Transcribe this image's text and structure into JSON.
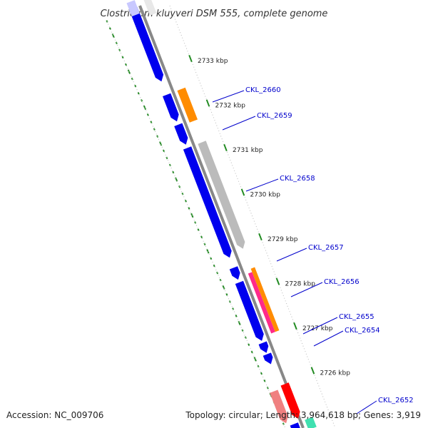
{
  "title": "Clostridium kluyveri DSM 555, complete genome",
  "accession_text": "Accession: NC_009706",
  "topology_text": "Topology: circular; Length: 3,964,618 bp; Genes: 3,919",
  "colors": {
    "forward_cds": "#0000ee",
    "orange_cds": "#ff8c00",
    "gray_feature": "#bbbbbb",
    "pink_feature": "#ff2a8a",
    "red_feature": "#ff0000",
    "light_red_feature": "#f08080",
    "teal_feature": "#40e0b0",
    "backbone": "#888888",
    "gc_ticks": "#228b22",
    "label_line": "#0000cc"
  },
  "kbp_ticks": [
    {
      "text": "2733 kbp",
      "kbp": 2733
    },
    {
      "text": "2732 kbp",
      "kbp": 2732
    },
    {
      "text": "2731 kbp",
      "kbp": 2731
    },
    {
      "text": "2730 kbp",
      "kbp": 2730
    },
    {
      "text": "2729 kbp",
      "kbp": 2729
    },
    {
      "text": "2728 kbp",
      "kbp": 2728
    },
    {
      "text": "2727 kbp",
      "kbp": 2727
    },
    {
      "text": "2726 kbp",
      "kbp": 2726
    }
  ],
  "gene_labels": [
    "CKL_2660",
    "CKL_2659",
    "CKL_2658",
    "CKL_2657",
    "CKL_2656",
    "CKL_2655",
    "CKL_2654",
    "CKL_2652"
  ]
}
